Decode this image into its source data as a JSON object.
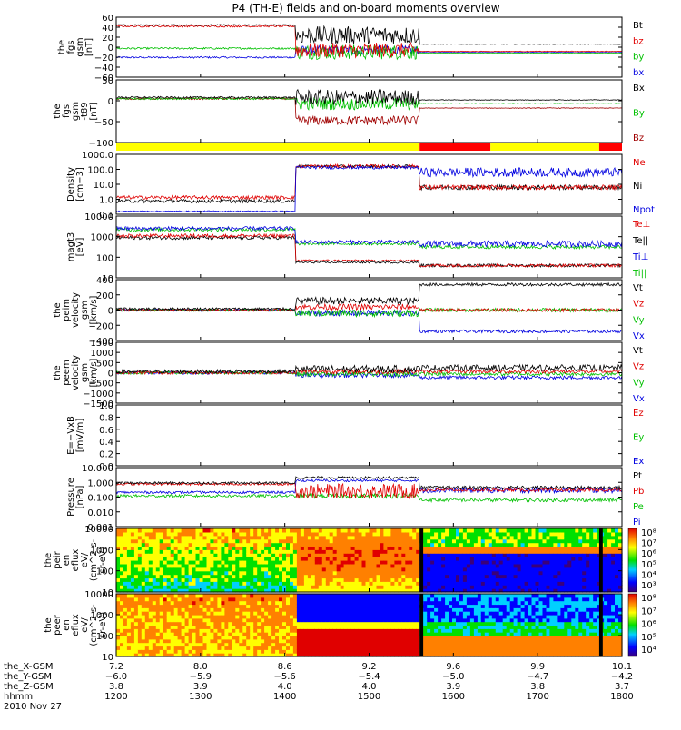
{
  "title": "P4 (TH-E) fields and on-board moments overview",
  "colors": {
    "black": "#000000",
    "red": "#e00000",
    "green": "#00c000",
    "blue": "#0000e0",
    "darkred": "#a00000",
    "bar_yellow": "#ffff00",
    "bar_red": "#ff0000"
  },
  "time_ticks": [
    "1200",
    "1300",
    "1400",
    "1500",
    "1600",
    "1700",
    "1800"
  ],
  "ephemeris": {
    "labels": [
      "the_X-GSM",
      "the_Y-GSM",
      "the_Z-GSM",
      "hhmm",
      "2010 Nov 27"
    ],
    "x_gsm": [
      "7.2",
      "8.0",
      "8.6",
      "9.2",
      "9.6",
      "9.9",
      "10.1"
    ],
    "y_gsm": [
      "−6.0",
      "−5.9",
      "−5.6",
      "−5.4",
      "−5.0",
      "−4.7",
      "−4.2"
    ],
    "z_gsm": [
      "3.8",
      "3.9",
      "4.0",
      "4.0",
      "3.9",
      "3.8",
      "3.7"
    ]
  },
  "chart_data": [
    {
      "type": "line",
      "panel": "fgs",
      "ylabel": [
        "the",
        "fgs",
        "gsm",
        "[nT]"
      ],
      "yticks": [
        "60",
        "40",
        "20",
        "0",
        "−20",
        "−40",
        "−60"
      ],
      "legend": [
        {
          "name": "Bt",
          "color": "#000000"
        },
        {
          "name": "bz",
          "color": "#e00000"
        },
        {
          "name": "by",
          "color": "#00c000"
        },
        {
          "name": "bx",
          "color": "#0000e0"
        }
      ],
      "ylim": [
        -60,
        60
      ]
    },
    {
      "type": "line",
      "panel": "fgs_t89",
      "ylabel": [
        "the",
        "fgs",
        "gsm",
        "-t89",
        "[nT]"
      ],
      "yticks": [
        "50",
        "0",
        "−50",
        "−100"
      ],
      "legend": [
        {
          "name": "Bx",
          "color": "#000000"
        },
        {
          "name": "By",
          "color": "#00c000"
        },
        {
          "name": "Bz",
          "color": "#a00000"
        }
      ],
      "ylim": [
        -120,
        50
      ]
    },
    {
      "type": "bar",
      "panel": "mode_bar",
      "segments": [
        {
          "from": 0,
          "to": 0.6,
          "color": "#ffff00"
        },
        {
          "from": 0.6,
          "to": 0.74,
          "color": "#ff0000"
        },
        {
          "from": 0.74,
          "to": 0.955,
          "color": "#ffff00"
        },
        {
          "from": 0.955,
          "to": 1,
          "color": "#ff0000"
        }
      ]
    },
    {
      "type": "line",
      "panel": "density",
      "scale": "log",
      "ylabel": [
        "Density",
        "[cm−3]"
      ],
      "yticks": [
        "1000.0",
        "100.0",
        "10.0",
        "1.0",
        "0.1"
      ],
      "legend": [
        {
          "name": "Ne",
          "color": "#e00000"
        },
        {
          "name": "Ni",
          "color": "#000000"
        },
        {
          "name": "Npot",
          "color": "#0000e0"
        }
      ],
      "ylim": [
        0.1,
        1000
      ]
    },
    {
      "type": "line",
      "panel": "temperature",
      "scale": "log",
      "ylabel": [
        "magt3",
        "[eV]"
      ],
      "yticks": [
        "10000",
        "1000",
        "100",
        "10"
      ],
      "legend": [
        {
          "name": "Te⊥",
          "color": "#e00000"
        },
        {
          "name": "Te||",
          "color": "#000000"
        },
        {
          "name": "Ti⊥",
          "color": "#0000e0"
        },
        {
          "name": "Ti||",
          "color": "#00c000"
        }
      ],
      "ylim": [
        10,
        10000
      ]
    },
    {
      "type": "line",
      "panel": "peim_velocity",
      "ylabel": [
        "the",
        "peim",
        "velocity",
        "gsm",
        "[km/s]"
      ],
      "yticks": [
        "400",
        "200",
        "0",
        "−200",
        "−400"
      ],
      "legend": [
        {
          "name": "Vt",
          "color": "#000000"
        },
        {
          "name": "Vz",
          "color": "#e00000"
        },
        {
          "name": "Vy",
          "color": "#00c000"
        },
        {
          "name": "Vx",
          "color": "#0000e0"
        }
      ],
      "ylim": [
        -400,
        400
      ]
    },
    {
      "type": "line",
      "panel": "peem_velocity",
      "ylabel": [
        "the",
        "peem",
        "velocity",
        "gsm",
        "[km/s]"
      ],
      "yticks": [
        "1500",
        "1000",
        "500",
        "0",
        "−500",
        "−1000",
        "−1500"
      ],
      "legend": [
        {
          "name": "Vt",
          "color": "#000000"
        },
        {
          "name": "Vz",
          "color": "#e00000"
        },
        {
          "name": "Vy",
          "color": "#00c000"
        },
        {
          "name": "Vx",
          "color": "#0000e0"
        }
      ],
      "ylim": [
        -1500,
        1500
      ]
    },
    {
      "type": "line",
      "panel": "efield",
      "ylabel": [
        "E=−VxB",
        "[mV/m]"
      ],
      "yticks": [
        "1.0",
        "0.8",
        "0.6",
        "0.4",
        "0.2",
        "0.0"
      ],
      "legend": [
        {
          "name": "Ez",
          "color": "#e00000"
        },
        {
          "name": "Ey",
          "color": "#00c000"
        },
        {
          "name": "Ex",
          "color": "#0000e0"
        }
      ],
      "ylim": [
        0,
        1
      ]
    },
    {
      "type": "line",
      "panel": "pressure",
      "scale": "log",
      "ylabel": [
        "Pressure",
        "[nPa]"
      ],
      "yticks": [
        "10.000",
        "1.000",
        "0.100",
        "0.010",
        "0.001"
      ],
      "legend": [
        {
          "name": "Pt",
          "color": "#000000"
        },
        {
          "name": "Pb",
          "color": "#e00000"
        },
        {
          "name": "Pe",
          "color": "#00c000"
        },
        {
          "name": "Pi",
          "color": "#0000e0"
        }
      ],
      "ylim": [
        0.001,
        10
      ]
    },
    {
      "type": "heatmap",
      "panel": "peir_eflux",
      "scale": "log",
      "ylabel": [
        "the",
        "peir",
        "en",
        "eflux",
        "eV/",
        "(cm^2-s-",
        "sr-eV)"
      ],
      "yticks": [
        "10000",
        "1000",
        "100",
        "10"
      ],
      "colorbar": [
        "10⁸",
        "10⁷",
        "10⁶",
        "10⁵",
        "10⁴",
        "10³"
      ],
      "ylim": [
        10,
        10000
      ]
    },
    {
      "type": "heatmap",
      "panel": "peer_eflux",
      "scale": "log",
      "ylabel": [
        "the",
        "peer",
        "en",
        "eflux",
        "eV/",
        "(cm^2-s-",
        "sr-eV)"
      ],
      "yticks": [
        "10000",
        "1000",
        "100",
        "10"
      ],
      "colorbar": [
        "10⁸",
        "10⁷",
        "10⁶",
        "10⁵",
        "10⁴"
      ],
      "ylim": [
        10,
        10000
      ]
    }
  ]
}
